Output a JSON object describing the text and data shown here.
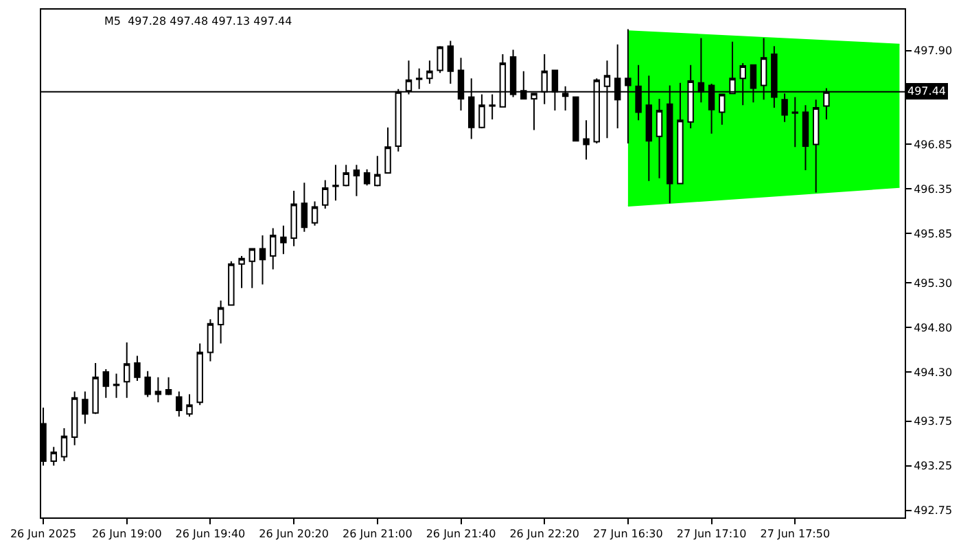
{
  "chart_data": {
    "type": "candlestick",
    "title": "M5  497.28 497.48 497.13 497.44",
    "categories": [
      "26 Jun 2025",
      null,
      null,
      null,
      null,
      null,
      null,
      null,
      "26 Jun 19:00",
      null,
      null,
      null,
      null,
      null,
      null,
      null,
      "26 Jun 19:40",
      null,
      null,
      null,
      null,
      null,
      null,
      null,
      "26 Jun 20:20",
      null,
      null,
      null,
      null,
      null,
      null,
      null,
      "26 Jun 21:00",
      null,
      null,
      null,
      null,
      null,
      null,
      null,
      "26 Jun 21:40",
      null,
      null,
      null,
      null,
      null,
      null,
      null,
      "26 Jun 22:20",
      null,
      null,
      null,
      null,
      null,
      null,
      null,
      "27 Jun 16:30",
      null,
      null,
      null,
      null,
      null,
      null,
      null,
      "27 Jun 17:10",
      null,
      null,
      null,
      null,
      null,
      null,
      null,
      "27 Jun 17:50",
      null,
      null,
      null,
      null,
      null,
      null,
      null,
      null,
      null,
      null
    ],
    "ohlc": [
      [
        493.72,
        493.9,
        493.25,
        493.3
      ],
      [
        493.3,
        493.46,
        493.25,
        493.4
      ],
      [
        493.35,
        493.67,
        493.3,
        493.58
      ],
      [
        493.57,
        494.08,
        493.48,
        494.01
      ],
      [
        493.99,
        494.08,
        493.72,
        493.83
      ],
      [
        493.84,
        494.4,
        493.83,
        494.24
      ],
      [
        494.3,
        494.33,
        494.01,
        494.14
      ],
      [
        494.15,
        494.28,
        494.01,
        494.16
      ],
      [
        494.19,
        494.63,
        494.01,
        494.39
      ],
      [
        494.4,
        494.48,
        494.2,
        494.24
      ],
      [
        494.24,
        494.31,
        494.02,
        494.05
      ],
      [
        494.05,
        494.24,
        493.96,
        494.08
      ],
      [
        494.1,
        494.24,
        494.04,
        494.05
      ],
      [
        494.02,
        494.08,
        493.8,
        493.87
      ],
      [
        493.83,
        494.05,
        493.8,
        493.93
      ],
      [
        493.96,
        494.62,
        493.93,
        494.52
      ],
      [
        494.52,
        494.89,
        494.42,
        494.84
      ],
      [
        494.83,
        495.1,
        494.62,
        495.02
      ],
      [
        495.05,
        495.54,
        495.05,
        495.51
      ],
      [
        495.51,
        495.6,
        495.24,
        495.57
      ],
      [
        495.54,
        495.68,
        495.24,
        495.68
      ],
      [
        495.68,
        495.83,
        495.28,
        495.56
      ],
      [
        495.6,
        495.91,
        495.45,
        495.83
      ],
      [
        495.81,
        495.94,
        495.62,
        495.75
      ],
      [
        495.8,
        496.33,
        495.71,
        496.18
      ],
      [
        496.19,
        496.42,
        495.87,
        495.92
      ],
      [
        495.97,
        496.21,
        495.94,
        496.15
      ],
      [
        496.17,
        496.45,
        496.13,
        496.36
      ],
      [
        496.38,
        496.62,
        496.22,
        496.39
      ],
      [
        496.39,
        496.62,
        496.38,
        496.53
      ],
      [
        496.56,
        496.62,
        496.27,
        496.5
      ],
      [
        496.53,
        496.57,
        496.39,
        496.41
      ],
      [
        496.39,
        496.72,
        496.38,
        496.51
      ],
      [
        496.53,
        497.04,
        496.53,
        496.82
      ],
      [
        496.83,
        497.47,
        496.77,
        497.44
      ],
      [
        497.45,
        497.79,
        497.41,
        497.57
      ],
      [
        497.58,
        497.7,
        497.47,
        497.59
      ],
      [
        497.59,
        497.79,
        497.53,
        497.67
      ],
      [
        497.68,
        497.95,
        497.65,
        497.94
      ],
      [
        497.95,
        498.01,
        497.53,
        497.67
      ],
      [
        497.68,
        497.82,
        497.23,
        497.36
      ],
      [
        497.38,
        497.59,
        496.91,
        497.04
      ],
      [
        497.04,
        497.41,
        497.03,
        497.29
      ],
      [
        497.28,
        497.41,
        497.13,
        497.29
      ],
      [
        497.27,
        497.86,
        497.27,
        497.76
      ],
      [
        497.83,
        497.91,
        497.38,
        497.41
      ],
      [
        497.45,
        497.67,
        497.36,
        497.36
      ],
      [
        497.36,
        497.42,
        497.01,
        497.42
      ],
      [
        497.44,
        497.86,
        497.3,
        497.67
      ],
      [
        497.68,
        497.68,
        497.23,
        497.44
      ],
      [
        497.42,
        497.5,
        497.23,
        497.39
      ],
      [
        497.38,
        497.38,
        496.89,
        496.89
      ],
      [
        496.91,
        497.12,
        496.68,
        496.85
      ],
      [
        496.88,
        497.59,
        496.86,
        497.57
      ],
      [
        497.5,
        497.79,
        496.92,
        497.62
      ],
      [
        497.59,
        497.97,
        497.03,
        497.35
      ],
      [
        497.59,
        498.14,
        496.86,
        497.51
      ],
      [
        497.5,
        497.74,
        497.12,
        497.21
      ],
      [
        497.29,
        497.62,
        496.44,
        496.89
      ],
      [
        496.94,
        497.36,
        496.47,
        497.23
      ],
      [
        497.3,
        497.51,
        496.19,
        496.41
      ],
      [
        496.41,
        497.54,
        496.41,
        497.12
      ],
      [
        497.1,
        497.74,
        497.03,
        497.56
      ],
      [
        497.54,
        498.04,
        497.32,
        497.44
      ],
      [
        497.51,
        497.53,
        496.97,
        497.24
      ],
      [
        497.21,
        497.41,
        497.07,
        497.41
      ],
      [
        497.42,
        498.0,
        497.42,
        497.59
      ],
      [
        497.59,
        497.76,
        497.29,
        497.73
      ],
      [
        497.74,
        497.74,
        497.32,
        497.48
      ],
      [
        497.51,
        498.04,
        497.35,
        497.82
      ],
      [
        497.86,
        497.95,
        497.26,
        497.38
      ],
      [
        497.35,
        497.42,
        497.1,
        497.18
      ],
      [
        497.2,
        497.38,
        496.82,
        497.21
      ],
      [
        497.21,
        497.29,
        496.56,
        496.83
      ],
      [
        496.85,
        497.35,
        496.31,
        497.26
      ],
      [
        497.28,
        497.48,
        497.13,
        497.44
      ],
      null,
      null,
      null,
      null,
      null,
      null,
      null
    ],
    "series": [
      {
        "type": "line",
        "color": "#00ff00",
        "values": [
          null,
          null,
          null,
          null,
          null,
          null,
          null,
          null,
          null,
          null,
          null,
          null,
          null,
          null,
          null,
          null,
          null,
          null,
          null,
          null,
          null,
          null,
          null,
          null,
          null,
          null,
          null,
          null,
          null,
          null,
          null,
          null,
          null,
          null,
          null,
          null,
          null,
          null,
          null,
          null,
          null,
          null,
          null,
          null,
          null,
          null,
          null,
          null,
          null,
          null,
          null,
          null,
          null,
          null,
          null,
          null,
          496.16,
          null,
          null,
          null,
          null,
          null,
          null,
          null,
          null,
          null,
          null,
          null,
          null,
          null,
          null,
          null,
          null,
          null,
          null,
          null,
          null,
          null,
          null,
          null,
          null,
          null,
          496.37
        ]
      },
      {
        "type": "area",
        "color": "#00ff00",
        "values": [
          null,
          null,
          null,
          null,
          null,
          null,
          null,
          null,
          null,
          null,
          null,
          null,
          null,
          null,
          null,
          null,
          null,
          null,
          null,
          null,
          null,
          null,
          null,
          null,
          null,
          null,
          null,
          null,
          null,
          null,
          null,
          null,
          null,
          null,
          null,
          null,
          null,
          null,
          null,
          null,
          null,
          null,
          null,
          null,
          null,
          null,
          null,
          null,
          null,
          null,
          null,
          null,
          null,
          null,
          null,
          null,
          498.12,
          null,
          null,
          null,
          null,
          null,
          null,
          null,
          null,
          null,
          null,
          null,
          null,
          null,
          null,
          null,
          null,
          null,
          null,
          null,
          null,
          null,
          null,
          null,
          null,
          null,
          497.97
        ]
      }
    ],
    "ylim": [
      492.67,
      498.36
    ],
    "yticks": [
      492.75,
      493.25,
      493.75,
      {
        "value": 494.3,
        "label": "494.30"
      },
      {
        "value": 494.8,
        "label": "494.80"
      },
      {
        "value": 495.3,
        "label": "495.30"
      },
      495.85,
      496.35,
      496.85,
      {
        "value": 497.9,
        "label": "497.90"
      }
    ],
    "ref_lines": [
      {
        "axis": "y",
        "value": 497.44,
        "label": "497.44",
        "color": "#000000"
      }
    ],
    "tick_labels": true
  }
}
